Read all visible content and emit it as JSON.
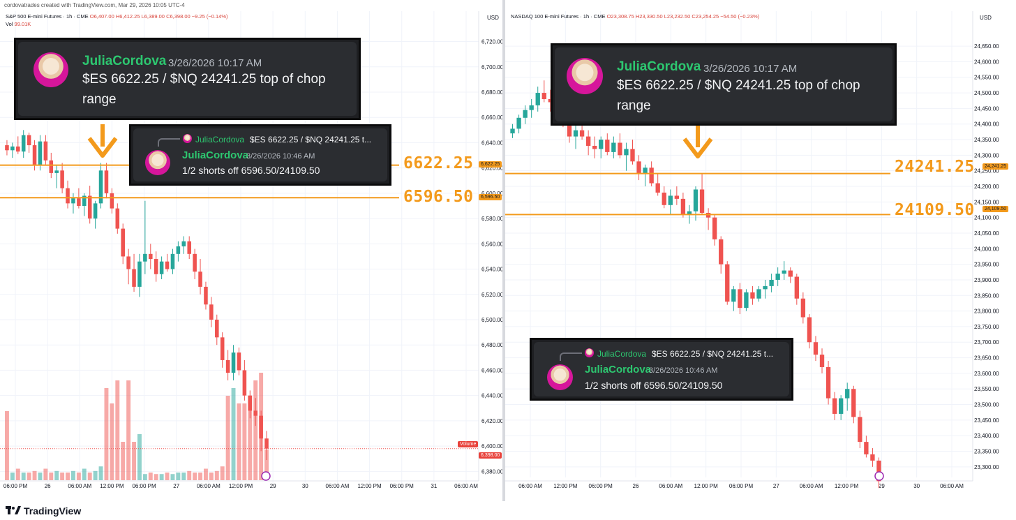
{
  "header": {
    "credit": "cordovatrades created with TradingView.com, Mar 29, 2026 10:05 UTC-4"
  },
  "footer": {
    "brand": "TradingView",
    "icon": "tradingview-logo-icon"
  },
  "colors": {
    "up": "#26a69a",
    "down": "#ef5350",
    "level": "#f39a1c",
    "discord_bg": "#2b2d31",
    "username": "#2dc770"
  },
  "left_chart": {
    "legend": {
      "symbol": "S&P 500 E-mini Futures · 1h · CME",
      "o": "O6,407.00",
      "h": "H6,412.25",
      "l": "L6,389.00",
      "c": "C6,398.00",
      "chg": "−9.25 (−0.14%)",
      "vol_label": "Vol",
      "vol_value": "99.01K"
    },
    "currency": "USD",
    "price_ticks": [
      "6,720.00",
      "6,700.00",
      "6,680.00",
      "6,660.00",
      "6,640.00",
      "6,620.00",
      "6,600.00",
      "6,580.00",
      "6,560.00",
      "6,540.00",
      "6,520.00",
      "6,500.00",
      "6,480.00",
      "6,460.00",
      "6,440.00",
      "6,420.00",
      "6,400.00",
      "6,380.00"
    ],
    "time_ticks": [
      "06:00 PM",
      "26",
      "06:00 AM",
      "12:00 PM",
      "06:00 PM",
      "27",
      "06:00 AM",
      "12:00 PM",
      "29",
      "30",
      "06:00 AM",
      "12:00 PM",
      "06:00 PM",
      "31",
      "06:00 AM"
    ],
    "level_1": "6622.25",
    "level_2": "6596.50",
    "tag_1": "6,622.25",
    "tag_2": "6,596.50",
    "tag_last": "6,398.00",
    "volume_tag": "Volume",
    "ylim": [
      6373,
      6733
    ],
    "candles": [
      [
        6638,
        6642,
        6630,
        6634
      ],
      [
        6634,
        6640,
        6628,
        6637
      ],
      [
        6637,
        6645,
        6631,
        6633
      ],
      [
        6633,
        6650,
        6628,
        6646
      ],
      [
        6646,
        6648,
        6632,
        6638
      ],
      [
        6638,
        6642,
        6618,
        6622
      ],
      [
        6622,
        6646,
        6618,
        6641
      ],
      [
        6641,
        6646,
        6622,
        6626
      ],
      [
        6626,
        6632,
        6612,
        6616
      ],
      [
        6616,
        6622,
        6604,
        6618
      ],
      [
        6618,
        6624,
        6600,
        6604
      ],
      [
        6604,
        6610,
        6588,
        6592
      ],
      [
        6592,
        6600,
        6584,
        6596
      ],
      [
        6596,
        6604,
        6588,
        6590
      ],
      [
        6590,
        6600,
        6582,
        6598
      ],
      [
        6598,
        6606,
        6576,
        6580
      ],
      [
        6580,
        6594,
        6572,
        6592
      ],
      [
        6592,
        6624,
        6588,
        6618
      ],
      [
        6618,
        6624,
        6596,
        6600
      ],
      [
        6600,
        6604,
        6584,
        6588
      ],
      [
        6588,
        6592,
        6568,
        6572
      ],
      [
        6572,
        6576,
        6544,
        6550
      ],
      [
        6550,
        6556,
        6528,
        6540
      ],
      [
        6540,
        6552,
        6522,
        6526
      ],
      [
        6526,
        6552,
        6518,
        6546
      ],
      [
        6546,
        6594,
        6536,
        6552
      ],
      [
        6552,
        6560,
        6540,
        6548
      ],
      [
        6548,
        6554,
        6530,
        6536
      ],
      [
        6536,
        6550,
        6532,
        6546
      ],
      [
        6546,
        6552,
        6538,
        6540
      ],
      [
        6540,
        6556,
        6536,
        6552
      ],
      [
        6552,
        6562,
        6546,
        6558
      ],
      [
        6558,
        6566,
        6552,
        6562
      ],
      [
        6562,
        6566,
        6548,
        6552
      ],
      [
        6552,
        6556,
        6532,
        6538
      ],
      [
        6538,
        6548,
        6520,
        6526
      ],
      [
        6526,
        6530,
        6508,
        6512
      ],
      [
        6512,
        6518,
        6494,
        6500
      ],
      [
        6500,
        6504,
        6480,
        6486
      ],
      [
        6486,
        6490,
        6462,
        6468
      ],
      [
        6468,
        6476,
        6452,
        6458
      ],
      [
        6458,
        6480,
        6452,
        6474
      ],
      [
        6474,
        6478,
        6456,
        6460
      ],
      [
        6460,
        6468,
        6436,
        6440
      ],
      [
        6440,
        6444,
        6422,
        6428
      ],
      [
        6428,
        6438,
        6416,
        6424
      ],
      [
        6424,
        6428,
        6396,
        6406
      ],
      [
        6406,
        6412,
        6389,
        6398
      ]
    ],
    "volume": [
      0.9,
      0.1,
      0.15,
      0.1,
      0.1,
      0.12,
      0.1,
      0.15,
      0.1,
      0.12,
      0.1,
      0.1,
      0.12,
      0.1,
      0.15,
      0.1,
      0.12,
      0.18,
      1.2,
      1.0,
      1.3,
      0.5,
      1.3,
      0.5,
      0.6,
      0.08,
      0.1,
      0.08,
      0.08,
      0.1,
      0.08,
      0.1,
      0.1,
      0.12,
      0.1,
      0.1,
      0.15,
      0.1,
      0.12,
      0.18,
      1.1,
      1.2,
      1.0,
      1.0,
      1.1,
      1.3,
      1.4,
      0.4
    ]
  },
  "right_chart": {
    "legend": {
      "symbol": "NASDAQ 100 E-mini Futures · 1h · CME",
      "o": "O23,308.75",
      "h": "H23,330.50",
      "l": "L23,232.50",
      "c": "C23,254.25",
      "chg": "−54.50 (−0.23%)"
    },
    "currency": "USD",
    "price_ticks": [
      "24,650.00",
      "24,600.00",
      "24,550.00",
      "24,500.00",
      "24,450.00",
      "24,400.00",
      "24,350.00",
      "24,300.00",
      "24,250.00",
      "24,200.00",
      "24,150.00",
      "24,100.00",
      "24,050.00",
      "24,000.00",
      "23,950.00",
      "23,900.00",
      "23,850.00",
      "23,800.00",
      "23,750.00",
      "23,700.00",
      "23,650.00",
      "23,600.00",
      "23,550.00",
      "23,500.00",
      "23,450.00",
      "23,400.00",
      "23,350.00",
      "23,300.00"
    ],
    "time_ticks": [
      "06:00 AM",
      "12:00 PM",
      "06:00 PM",
      "26",
      "06:00 AM",
      "12:00 PM",
      "06:00 PM",
      "27",
      "06:00 AM",
      "12:00 PM",
      "29",
      "30",
      "06:00 AM"
    ],
    "level_1": "24241.25",
    "level_2": "24109.50",
    "tag_1": "24,241.25",
    "tag_2": "24,109.50",
    "ylim": [
      23275,
      24695
    ],
    "candles": [
      [
        24370,
        24400,
        24355,
        24385
      ],
      [
        24385,
        24430,
        24370,
        24420
      ],
      [
        24420,
        24460,
        24400,
        24445
      ],
      [
        24445,
        24480,
        24420,
        24460
      ],
      [
        24460,
        24520,
        24440,
        24500
      ],
      [
        24500,
        24540,
        24470,
        24480
      ],
      [
        24480,
        24510,
        24440,
        24470
      ],
      [
        24470,
        24500,
        24430,
        24445
      ],
      [
        24445,
        24470,
        24390,
        24400
      ],
      [
        24400,
        24430,
        24340,
        24360
      ],
      [
        24360,
        24400,
        24320,
        24380
      ],
      [
        24380,
        24420,
        24350,
        24360
      ],
      [
        24360,
        24380,
        24300,
        24330
      ],
      [
        24330,
        24360,
        24290,
        24320
      ],
      [
        24320,
        24360,
        24290,
        24350
      ],
      [
        24350,
        24370,
        24300,
        24310
      ],
      [
        24310,
        24360,
        24290,
        24340
      ],
      [
        24340,
        24370,
        24290,
        24300
      ],
      [
        24300,
        24340,
        24250,
        24320
      ],
      [
        24320,
        24350,
        24270,
        24280
      ],
      [
        24280,
        24300,
        24220,
        24240
      ],
      [
        24240,
        24270,
        24200,
        24260
      ],
      [
        24260,
        24280,
        24200,
        24210
      ],
      [
        24210,
        24240,
        24170,
        24180
      ],
      [
        24180,
        24200,
        24130,
        24140
      ],
      [
        24140,
        24190,
        24110,
        24170
      ],
      [
        24170,
        24200,
        24140,
        24160
      ],
      [
        24160,
        24180,
        24100,
        24110
      ],
      [
        24110,
        24140,
        24080,
        24120
      ],
      [
        24120,
        24200,
        24090,
        24190
      ],
      [
        24190,
        24240,
        24110,
        24115
      ],
      [
        24115,
        24130,
        24060,
        24100
      ],
      [
        24100,
        24110,
        24010,
        24030
      ],
      [
        24030,
        24040,
        23920,
        23950
      ],
      [
        23950,
        23960,
        23820,
        23830
      ],
      [
        23830,
        23880,
        23800,
        23870
      ],
      [
        23870,
        23890,
        23790,
        23810
      ],
      [
        23810,
        23870,
        23800,
        23860
      ],
      [
        23860,
        23880,
        23820,
        23840
      ],
      [
        23840,
        23880,
        23830,
        23870
      ],
      [
        23870,
        23900,
        23840,
        23880
      ],
      [
        23880,
        23920,
        23860,
        23900
      ],
      [
        23900,
        23940,
        23880,
        23920
      ],
      [
        23920,
        23960,
        23900,
        23930
      ],
      [
        23930,
        23940,
        23890,
        23910
      ],
      [
        23910,
        23920,
        23820,
        23840
      ],
      [
        23840,
        23860,
        23760,
        23780
      ],
      [
        23780,
        23790,
        23680,
        23700
      ],
      [
        23700,
        23720,
        23640,
        23660
      ],
      [
        23660,
        23680,
        23600,
        23620
      ],
      [
        23620,
        23640,
        23500,
        23520
      ],
      [
        23520,
        23540,
        23450,
        23470
      ],
      [
        23470,
        23530,
        23450,
        23520
      ],
      [
        23520,
        23570,
        23480,
        23550
      ],
      [
        23550,
        23560,
        23440,
        23460
      ],
      [
        23460,
        23480,
        23360,
        23380
      ],
      [
        23380,
        23400,
        23330,
        23340
      ],
      [
        23340,
        23360,
        23300,
        23320
      ],
      [
        23320,
        23330,
        23232,
        23254
      ]
    ]
  },
  "cards": {
    "post": {
      "username": "JuliaCordova",
      "time": "3/26/2026 10:17 AM",
      "text_1": "$ES 6622.25 / $NQ 24241.25 top of chop",
      "text_2": "range"
    },
    "reply": {
      "quote_user": "JuliaCordova",
      "quote_text": "$ES 6622.25 / $NQ 24241.25 t...",
      "username": "JuliaCordova",
      "time": "3/26/2026 10:46 AM",
      "text": "1/2 shorts off 6596.50/24109.50"
    }
  }
}
